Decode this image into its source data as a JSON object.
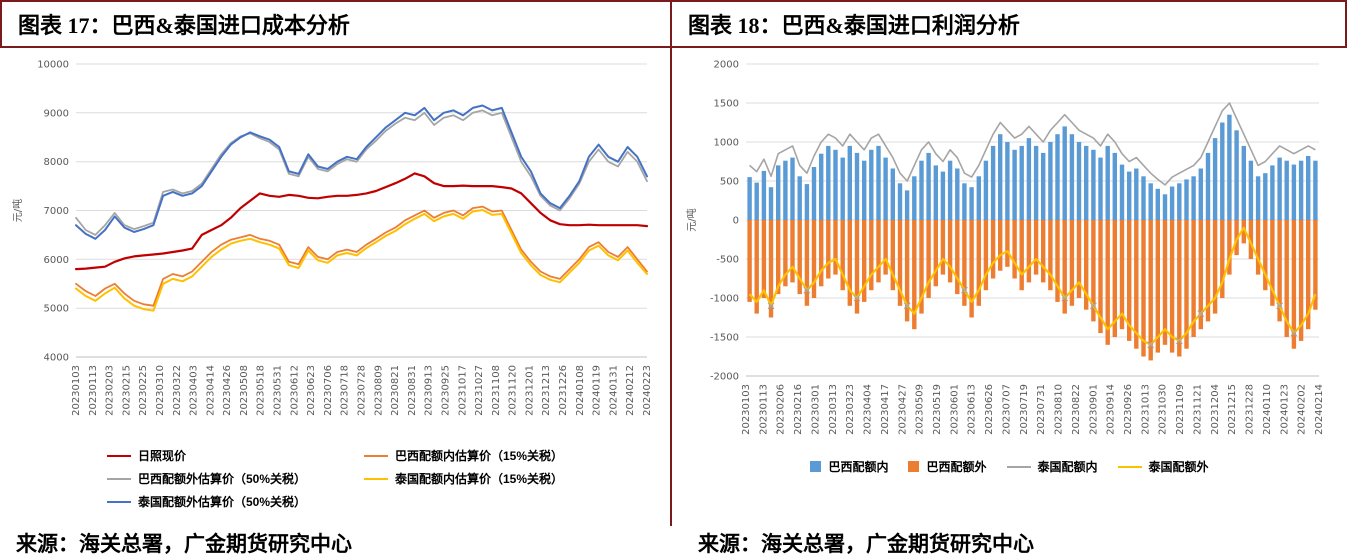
{
  "accent_color": "#7b1a1a",
  "left": {
    "title": "图表 17：巴西&泰国进口成本分析",
    "source": "来源：海关总署，广金期货研究中心"
  },
  "right": {
    "title": "图表 18：巴西&泰国进口利润分析",
    "source": "来源：海关总署，广金期货研究中心"
  },
  "chart_data": [
    {
      "id": "cost-analysis",
      "type": "line",
      "title": "图表 17：巴西&泰国进口成本分析",
      "xlabel": "",
      "ylabel": "元/吨",
      "ylim": [
        4000,
        10000
      ],
      "ytick_step": 1000,
      "grid": true,
      "legend_position": "bottom",
      "x_ticks": [
        "20230103",
        "20230113",
        "20230203",
        "20230215",
        "20230225",
        "20230310",
        "20230322",
        "20230403",
        "20230414",
        "20230426",
        "20230508",
        "20230518",
        "20230531",
        "20230612",
        "20230623",
        "20230706",
        "20230718",
        "20230728",
        "20230809",
        "20230821",
        "20230831",
        "20230913",
        "20230925",
        "20231017",
        "20231027",
        "20231108",
        "20231120",
        "20231201",
        "20231213",
        "20231226",
        "20240108",
        "20240119",
        "20240131",
        "20240212",
        "20240223"
      ],
      "draw_order": [
        2,
        4,
        1,
        3,
        0
      ],
      "series": [
        {
          "name": "日照现价",
          "color": "#C00000",
          "width": 2.2,
          "values": [
            5800,
            5810,
            5830,
            5850,
            5950,
            6020,
            6060,
            6080,
            6100,
            6120,
            6150,
            6180,
            6220,
            6500,
            6600,
            6700,
            6850,
            7050,
            7200,
            7350,
            7300,
            7280,
            7320,
            7300,
            7260,
            7250,
            7280,
            7300,
            7300,
            7320,
            7350,
            7400,
            7480,
            7560,
            7650,
            7760,
            7700,
            7560,
            7500,
            7500,
            7510,
            7500,
            7500,
            7500,
            7480,
            7450,
            7350,
            7150,
            6950,
            6800,
            6720,
            6700,
            6700,
            6710,
            6700,
            6700,
            6700,
            6700,
            6700,
            6680
          ]
        },
        {
          "name": "巴西配额内估算价（15%关税）",
          "color": "#ED7D31",
          "width": 1.8,
          "values": [
            5500,
            5350,
            5250,
            5400,
            5500,
            5300,
            5150,
            5080,
            5050,
            5600,
            5700,
            5650,
            5750,
            5950,
            6150,
            6300,
            6400,
            6450,
            6500,
            6420,
            6380,
            6300,
            5950,
            5900,
            6250,
            6050,
            6000,
            6150,
            6200,
            6150,
            6300,
            6420,
            6550,
            6650,
            6800,
            6900,
            7000,
            6850,
            6950,
            7000,
            6900,
            7050,
            7080,
            6980,
            7000,
            6600,
            6200,
            5950,
            5750,
            5650,
            5600,
            5800,
            6000,
            6250,
            6350,
            6150,
            6050,
            6250,
            6000,
            5750
          ]
        },
        {
          "name": "巴西配额外估算价（50%关税）",
          "color": "#A5A5A5",
          "width": 1.8,
          "values": [
            6850,
            6600,
            6500,
            6700,
            6950,
            6700,
            6620,
            6680,
            6750,
            7380,
            7430,
            7350,
            7400,
            7550,
            7850,
            8150,
            8380,
            8520,
            8580,
            8480,
            8400,
            8250,
            7750,
            7700,
            8100,
            7850,
            7800,
            7950,
            8050,
            8000,
            8250,
            8430,
            8630,
            8780,
            8900,
            8850,
            9000,
            8750,
            8900,
            8950,
            8850,
            9000,
            9050,
            8950,
            9000,
            8500,
            8000,
            7700,
            7300,
            7100,
            7000,
            7250,
            7550,
            8000,
            8250,
            8000,
            7900,
            8200,
            8000,
            7600
          ]
        },
        {
          "name": "泰国配额内估算价（15%关税）",
          "color": "#FFC000",
          "width": 2,
          "values": [
            5400,
            5250,
            5150,
            5300,
            5420,
            5200,
            5050,
            4980,
            4950,
            5500,
            5600,
            5550,
            5650,
            5850,
            6050,
            6200,
            6320,
            6380,
            6420,
            6350,
            6300,
            6220,
            5880,
            5820,
            6180,
            5980,
            5930,
            6080,
            6130,
            6080,
            6230,
            6350,
            6480,
            6580,
            6720,
            6830,
            6930,
            6780,
            6880,
            6930,
            6830,
            6980,
            7010,
            6910,
            6930,
            6530,
            6130,
            5880,
            5680,
            5580,
            5530,
            5730,
            5930,
            6180,
            6280,
            6080,
            5980,
            6180,
            5930,
            5700
          ]
        },
        {
          "name": "泰国配额外估算价（50%关税）",
          "color": "#4472C4",
          "width": 2,
          "values": [
            6700,
            6520,
            6420,
            6600,
            6880,
            6650,
            6560,
            6620,
            6700,
            7300,
            7380,
            7300,
            7350,
            7500,
            7800,
            8100,
            8350,
            8500,
            8600,
            8520,
            8450,
            8300,
            7800,
            7750,
            8150,
            7900,
            7850,
            8000,
            8100,
            8050,
            8300,
            8500,
            8700,
            8850,
            9000,
            8950,
            9100,
            8850,
            9000,
            9050,
            8950,
            9100,
            9150,
            9050,
            9100,
            8600,
            8100,
            7800,
            7350,
            7150,
            7050,
            7300,
            7600,
            8100,
            8350,
            8100,
            8000,
            8300,
            8100,
            7700
          ]
        }
      ]
    },
    {
      "id": "profit-analysis",
      "type": "bar-line",
      "title": "图表 18：巴西&泰国进口利润分析",
      "xlabel": "",
      "ylabel": "元/吨",
      "ylim": [
        -2000,
        2000
      ],
      "ytick_step": 500,
      "grid": true,
      "legend_position": "bottom",
      "x_ticks": [
        "20230103",
        "20230113",
        "20230206",
        "20230216",
        "20230301",
        "20230313",
        "20230323",
        "20230404",
        "20230417",
        "20230427",
        "20230509",
        "20230519",
        "20230601",
        "20230613",
        "20230626",
        "20230707",
        "20230719",
        "20230731",
        "20230810",
        "20230822",
        "20230901",
        "20230914",
        "20230926",
        "20231013",
        "20231030",
        "20231109",
        "20231121",
        "20231204",
        "20231215",
        "20231228",
        "20240110",
        "20240123",
        "20240202",
        "20240214"
      ],
      "bar_series": [
        {
          "name": "巴西配额内",
          "color": "#5B9BD5",
          "values": [
            550,
            480,
            630,
            420,
            700,
            760,
            800,
            560,
            460,
            680,
            850,
            950,
            900,
            800,
            950,
            860,
            760,
            900,
            950,
            800,
            660,
            470,
            380,
            560,
            760,
            860,
            700,
            620,
            760,
            660,
            470,
            420,
            560,
            760,
            950,
            1100,
            1000,
            900,
            950,
            1050,
            950,
            860,
            1000,
            1100,
            1200,
            1100,
            1000,
            950,
            900,
            800,
            950,
            860,
            710,
            620,
            660,
            560,
            470,
            400,
            330,
            430,
            470,
            520,
            560,
            660,
            860,
            1050,
            1250,
            1350,
            1150,
            950,
            760,
            560,
            600,
            700,
            800,
            760,
            710,
            760,
            820,
            760
          ]
        },
        {
          "name": "巴西配额外",
          "color": "#ED7D31",
          "values": [
            -1050,
            -1200,
            -1000,
            -1250,
            -950,
            -850,
            -800,
            -950,
            -1100,
            -1000,
            -850,
            -750,
            -700,
            -900,
            -1100,
            -1200,
            -1050,
            -900,
            -800,
            -700,
            -900,
            -1100,
            -1300,
            -1400,
            -1200,
            -1000,
            -850,
            -700,
            -800,
            -950,
            -1100,
            -1250,
            -1100,
            -900,
            -750,
            -650,
            -600,
            -750,
            -900,
            -800,
            -700,
            -800,
            -900,
            -1050,
            -1200,
            -1100,
            -1000,
            -1150,
            -1300,
            -1450,
            -1600,
            -1500,
            -1400,
            -1550,
            -1650,
            -1750,
            -1800,
            -1700,
            -1600,
            -1700,
            -1750,
            -1650,
            -1500,
            -1400,
            -1300,
            -1200,
            -1000,
            -700,
            -450,
            -300,
            -500,
            -700,
            -900,
            -1100,
            -1300,
            -1500,
            -1650,
            -1550,
            -1400,
            -1150
          ]
        }
      ],
      "line_series": [
        {
          "name": "泰国配额内",
          "color": "#A5A5A5",
          "width": 1.6,
          "values": [
            700,
            620,
            780,
            560,
            850,
            900,
            950,
            700,
            600,
            820,
            1000,
            1100,
            1050,
            950,
            1100,
            1000,
            900,
            1050,
            1100,
            950,
            800,
            600,
            500,
            700,
            900,
            1000,
            850,
            750,
            900,
            800,
            600,
            550,
            700,
            900,
            1100,
            1250,
            1150,
            1050,
            1100,
            1200,
            1100,
            1000,
            1150,
            1250,
            1350,
            1250,
            1150,
            1100,
            1050,
            950,
            1100,
            1000,
            850,
            750,
            800,
            700,
            600,
            520,
            450,
            550,
            600,
            650,
            700,
            800,
            1000,
            1200,
            1400,
            1500,
            1300,
            1100,
            900,
            700,
            750,
            850,
            950,
            900,
            850,
            900,
            950,
            900
          ]
        },
        {
          "name": "泰国配额外",
          "color": "#FFC000",
          "width": 2.2,
          "marker_indices": [
            3,
            8,
            15,
            22,
            30,
            44,
            48,
            56,
            60,
            63,
            74,
            76
          ],
          "values": [
            -950,
            -1050,
            -900,
            -1100,
            -850,
            -700,
            -600,
            -750,
            -900,
            -800,
            -650,
            -550,
            -500,
            -700,
            -900,
            -1000,
            -850,
            -700,
            -600,
            -500,
            -700,
            -900,
            -1100,
            -1200,
            -1000,
            -800,
            -650,
            -500,
            -600,
            -750,
            -900,
            -1050,
            -900,
            -700,
            -550,
            -450,
            -400,
            -550,
            -700,
            -600,
            -500,
            -600,
            -700,
            -850,
            -1000,
            -900,
            -800,
            -950,
            -1100,
            -1250,
            -1400,
            -1300,
            -1200,
            -1350,
            -1450,
            -1550,
            -1600,
            -1500,
            -1400,
            -1500,
            -1550,
            -1450,
            -1300,
            -1200,
            -1100,
            -1000,
            -800,
            -500,
            -250,
            -100,
            -300,
            -500,
            -700,
            -900,
            -1100,
            -1300,
            -1450,
            -1350,
            -1200,
            -950
          ]
        }
      ]
    }
  ]
}
